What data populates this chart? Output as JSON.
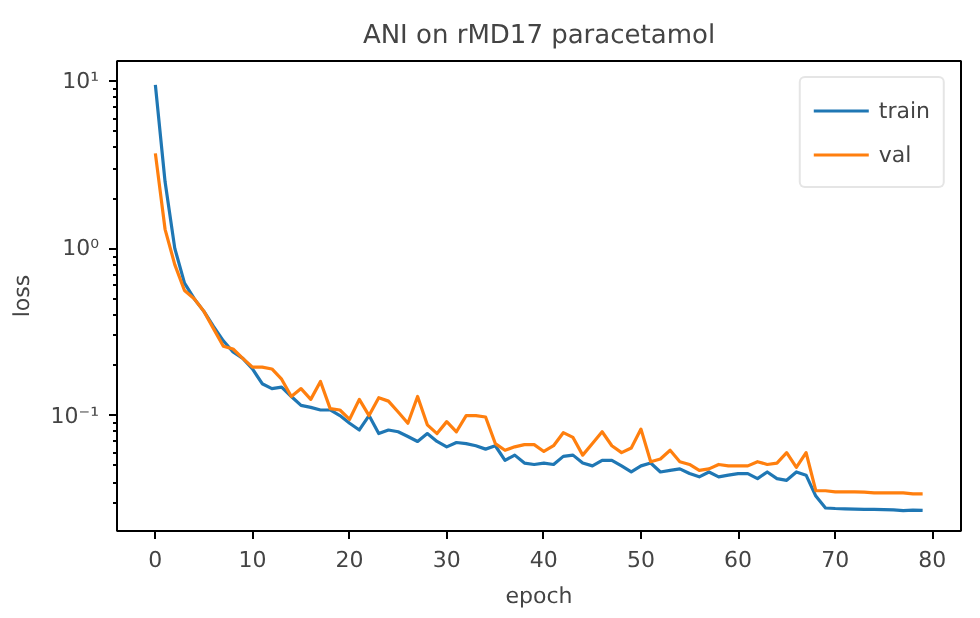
{
  "chart_data": {
    "type": "line",
    "title": "ANI on rMD17 paracetamol",
    "xlabel": "epoch",
    "ylabel": "loss",
    "x": [
      0,
      1,
      2,
      3,
      4,
      5,
      6,
      7,
      8,
      9,
      10,
      11,
      12,
      13,
      14,
      15,
      16,
      17,
      18,
      19,
      20,
      21,
      22,
      23,
      24,
      25,
      26,
      27,
      28,
      29,
      30,
      31,
      32,
      33,
      34,
      35,
      36,
      37,
      38,
      39,
      40,
      41,
      42,
      43,
      44,
      45,
      46,
      47,
      48,
      49,
      50,
      51,
      52,
      53,
      54,
      55,
      56,
      57,
      58,
      59,
      60,
      61,
      62,
      63,
      64,
      65,
      66,
      67,
      68,
      69,
      70,
      71,
      72,
      73,
      74,
      75,
      76,
      77,
      78,
      79
    ],
    "series": [
      {
        "name": "train",
        "color": "#1f77b4",
        "values": [
          9.5,
          2.5,
          1.0,
          0.62,
          0.5,
          0.42,
          0.34,
          0.28,
          0.24,
          0.22,
          0.19,
          0.155,
          0.145,
          0.148,
          0.13,
          0.115,
          0.112,
          0.108,
          0.108,
          0.1,
          0.09,
          0.082,
          0.1,
          0.078,
          0.082,
          0.08,
          0.075,
          0.07,
          0.078,
          0.07,
          0.065,
          0.069,
          0.068,
          0.066,
          0.063,
          0.066,
          0.054,
          0.058,
          0.052,
          0.051,
          0.052,
          0.051,
          0.057,
          0.058,
          0.052,
          0.05,
          0.054,
          0.054,
          0.05,
          0.046,
          0.05,
          0.052,
          0.046,
          0.047,
          0.048,
          0.045,
          0.043,
          0.046,
          0.043,
          0.044,
          0.045,
          0.045,
          0.042,
          0.046,
          0.042,
          0.041,
          0.046,
          0.044,
          0.033,
          0.028,
          0.0278,
          0.0277,
          0.0276,
          0.0275,
          0.0275,
          0.0274,
          0.0273,
          0.027,
          0.0272,
          0.0271
        ]
      },
      {
        "name": "val",
        "color": "#ff7f0e",
        "values": [
          3.7,
          1.3,
          0.8,
          0.56,
          0.5,
          0.42,
          0.33,
          0.26,
          0.25,
          0.22,
          0.195,
          0.195,
          0.19,
          0.165,
          0.13,
          0.145,
          0.125,
          0.16,
          0.11,
          0.108,
          0.095,
          0.125,
          0.1,
          0.128,
          0.122,
          0.105,
          0.09,
          0.13,
          0.088,
          0.078,
          0.092,
          0.08,
          0.1,
          0.1,
          0.098,
          0.068,
          0.062,
          0.065,
          0.067,
          0.067,
          0.061,
          0.066,
          0.079,
          0.074,
          0.058,
          0.068,
          0.08,
          0.066,
          0.06,
          0.064,
          0.083,
          0.053,
          0.055,
          0.062,
          0.053,
          0.051,
          0.047,
          0.048,
          0.051,
          0.05,
          0.05,
          0.05,
          0.053,
          0.051,
          0.052,
          0.06,
          0.049,
          0.06,
          0.0356,
          0.0355,
          0.035,
          0.035,
          0.035,
          0.0348,
          0.0345,
          0.0345,
          0.0345,
          0.0345,
          0.034,
          0.034
        ]
      }
    ],
    "xlim": [
      -3.95,
      82.95
    ],
    "ylim": [
      0.0204,
      13.2
    ],
    "log": "y",
    "xticks": [
      0,
      10,
      20,
      30,
      40,
      50,
      60,
      70,
      80
    ],
    "yticks": [
      {
        "value": 0.1,
        "label": "10⁻¹"
      },
      {
        "value": 1,
        "label": "10⁰"
      },
      {
        "value": 10,
        "label": "10¹"
      }
    ],
    "legend": "top right",
    "grid": false
  }
}
